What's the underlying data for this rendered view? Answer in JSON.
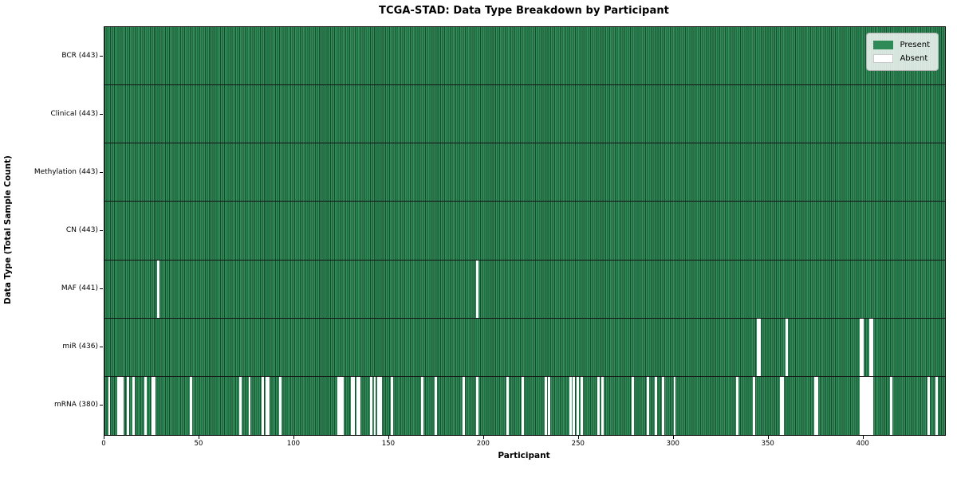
{
  "figure": {
    "title": "TCGA-STAD: Data Type Breakdown by Participant",
    "xlabel": "Participant",
    "ylabel": "Data Type (Total Sample Count)"
  },
  "legend": {
    "present_label": "Present",
    "absent_label": "Absent"
  },
  "colors": {
    "present_fill": "#31915c",
    "present_edge": "#1a4a2d",
    "absent_fill": "#ffffff",
    "legend_present_swatch": "#2e8b57",
    "row_separator": "#141414",
    "axis": "#0d0d0d"
  },
  "chart_data": {
    "type": "heatmap",
    "title": "TCGA-STAD: Data Type Breakdown by Participant",
    "xlabel": "Participant",
    "ylabel": "Data Type (Total Sample Count)",
    "n_participants": 443,
    "x_ticks": [
      0,
      50,
      100,
      150,
      200,
      250,
      300,
      350,
      400
    ],
    "legend": [
      "Present",
      "Absent"
    ],
    "legend_position": "upper right",
    "rows": [
      {
        "label": "BCR (443)",
        "data_type": "BCR",
        "present_count": 443,
        "absent_participants": []
      },
      {
        "label": "Clinical (443)",
        "data_type": "Clinical",
        "present_count": 443,
        "absent_participants": []
      },
      {
        "label": "Methylation (443)",
        "data_type": "Methylation",
        "present_count": 443,
        "absent_participants": []
      },
      {
        "label": "CN (443)",
        "data_type": "CN",
        "present_count": 443,
        "absent_participants": []
      },
      {
        "label": "MAF (441)",
        "data_type": "MAF",
        "present_count": 441,
        "absent_participants": [
          28,
          196
        ]
      },
      {
        "label": "miR (436)",
        "data_type": "miR",
        "present_count": 436,
        "absent_participants": [
          344,
          345,
          359,
          398,
          399,
          403,
          404
        ]
      },
      {
        "label": "mRNA (380)",
        "data_type": "mRNA",
        "present_count": 380,
        "absent_participants": [
          2,
          7,
          8,
          9,
          12,
          15,
          21,
          25,
          26,
          45,
          71,
          76,
          83,
          85,
          86,
          92,
          123,
          124,
          125,
          130,
          131,
          133,
          134,
          140,
          142,
          144,
          145,
          151,
          167,
          174,
          189,
          196,
          212,
          220,
          232,
          234,
          245,
          247,
          249,
          251,
          260,
          262,
          278,
          286,
          290,
          294,
          300,
          333,
          342,
          356,
          357,
          374,
          375,
          398,
          399,
          400,
          401,
          402,
          403,
          404,
          414,
          434,
          438
        ]
      }
    ]
  }
}
